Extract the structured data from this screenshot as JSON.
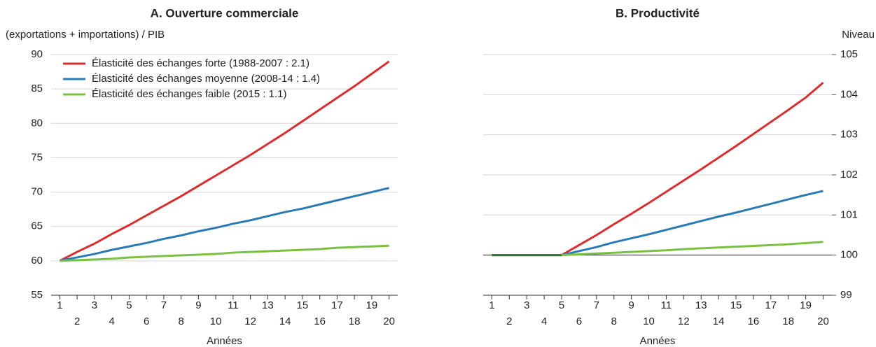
{
  "chart_data": [
    {
      "type": "line",
      "title": "A. Ouverture commerciale",
      "y_label": "(exportations + importations) / PIB",
      "x_label": "Années",
      "x": [
        1,
        2,
        3,
        4,
        5,
        6,
        7,
        8,
        9,
        10,
        11,
        12,
        13,
        14,
        15,
        16,
        17,
        18,
        19,
        20
      ],
      "xlim": [
        0.5,
        20.5
      ],
      "xticks": [
        1,
        2,
        3,
        4,
        5,
        6,
        7,
        8,
        9,
        10,
        11,
        12,
        13,
        14,
        15,
        16,
        17,
        18,
        19,
        20
      ],
      "ylim": [
        55,
        90
      ],
      "yticks": [
        55,
        60,
        65,
        70,
        75,
        80,
        85,
        90
      ],
      "y_axis_side": "left",
      "grid": true,
      "legend": "upper left",
      "series": [
        {
          "name": "Élasticité des échanges forte (1988-2007 : 2.1)",
          "color": "#d62f2f",
          "values": [
            60,
            61.3,
            62.5,
            63.9,
            65.2,
            66.6,
            68.0,
            69.4,
            70.9,
            72.4,
            73.9,
            75.4,
            77.0,
            78.6,
            80.3,
            82.0,
            83.7,
            85.4,
            87.2,
            89.0
          ]
        },
        {
          "name": "Élasticité des échanges moyenne (2008-14 : 1.4)",
          "color": "#2a7bb5",
          "values": [
            60,
            60.5,
            61.0,
            61.6,
            62.1,
            62.6,
            63.2,
            63.7,
            64.3,
            64.8,
            65.4,
            65.9,
            66.5,
            67.1,
            67.6,
            68.2,
            68.8,
            69.4,
            70.0,
            70.6
          ]
        },
        {
          "name": "Élasticité des échanges faible (2015 : 1.1)",
          "color": "#7ac143",
          "values": [
            60,
            60.1,
            60.2,
            60.3,
            60.5,
            60.6,
            60.7,
            60.8,
            60.9,
            61.0,
            61.2,
            61.3,
            61.4,
            61.5,
            61.6,
            61.7,
            61.9,
            62.0,
            62.1,
            62.2
          ]
        }
      ]
    },
    {
      "type": "line",
      "title": "B. Productivité",
      "y_label": "Niveau",
      "x_label": "Années",
      "x": [
        1,
        2,
        3,
        4,
        5,
        6,
        7,
        8,
        9,
        10,
        11,
        12,
        13,
        14,
        15,
        16,
        17,
        18,
        19,
        20
      ],
      "xlim": [
        0.5,
        20.5
      ],
      "xticks": [
        1,
        2,
        3,
        4,
        5,
        6,
        7,
        8,
        9,
        10,
        11,
        12,
        13,
        14,
        15,
        16,
        17,
        18,
        19,
        20
      ],
      "ylim": [
        99,
        105
      ],
      "yticks": [
        99,
        100,
        101,
        102,
        103,
        104,
        105
      ],
      "y_axis_side": "right",
      "grid": true,
      "hline": 100,
      "series": [
        {
          "color": "#d62f2f",
          "values": [
            100,
            100,
            100,
            100,
            100,
            100.25,
            100.5,
            100.77,
            101.03,
            101.3,
            101.58,
            101.86,
            102.14,
            102.43,
            102.72,
            103.02,
            103.32,
            103.62,
            103.93,
            104.3
          ]
        },
        {
          "color": "#2a7bb5",
          "values": [
            100,
            100,
            100,
            100,
            100,
            100.1,
            100.2,
            100.32,
            100.42,
            100.52,
            100.63,
            100.74,
            100.85,
            100.96,
            101.06,
            101.17,
            101.28,
            101.39,
            101.5,
            101.6
          ]
        },
        {
          "color": "#7ac143",
          "values": [
            100,
            100,
            100,
            100,
            100,
            100.02,
            100.04,
            100.06,
            100.08,
            100.1,
            100.12,
            100.15,
            100.17,
            100.19,
            100.21,
            100.23,
            100.25,
            100.27,
            100.3,
            100.33
          ]
        },
        {
          "color": "#2f7a2f",
          "values": [
            100,
            100,
            100,
            100,
            100,
            null,
            null,
            null,
            null,
            null,
            null,
            null,
            null,
            null,
            null,
            null,
            null,
            null,
            null,
            null
          ]
        }
      ]
    }
  ]
}
